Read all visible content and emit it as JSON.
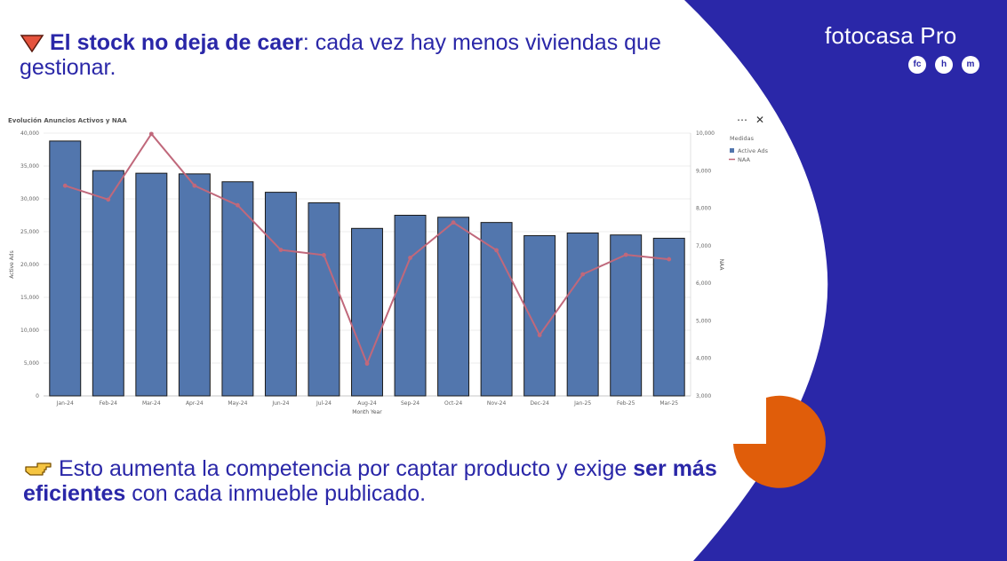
{
  "slide": {
    "headline_bold": "El stock no deja de caer",
    "headline_rest": ": cada vez hay menos viviendas que gestionar.",
    "bottom_pre": "Esto aumenta la competencia por captar producto y exige ",
    "bottom_bold": "ser más eficientes",
    "bottom_post": " con cada inmueble publicado.",
    "brand": "fotocasa Pro",
    "badges": [
      "fc",
      "h",
      "m"
    ],
    "colors": {
      "accent": "#2a27a8",
      "orange": "#e05d0a",
      "bar": "#5276ad",
      "line": "#c0687b"
    },
    "icons": [
      "triangle-down-icon",
      "pointing-hand-icon"
    ]
  },
  "chart_data": {
    "type": "bar",
    "title": "Evolución Anuncios Activos y NAA",
    "xlabel": "Month Year",
    "ylabel": "Active Ads",
    "y2label": "NAA",
    "categories": [
      "Jan-24",
      "Feb-24",
      "Mar-24",
      "Apr-24",
      "May-24",
      "Jun-24",
      "Jul-24",
      "Aug-24",
      "Sep-24",
      "Oct-24",
      "Nov-24",
      "Dec-24",
      "Jan-25",
      "Feb-25",
      "Mar-25"
    ],
    "ylim": [
      0,
      40000
    ],
    "y2lim": [
      3000,
      10000
    ],
    "yticks": [
      "0",
      "5,000",
      "10,000",
      "15,000",
      "20,000",
      "25,000",
      "30,000",
      "35,000",
      "40,000"
    ],
    "y2ticks": [
      "3,000",
      "4,000",
      "5,000",
      "6,000",
      "7,000",
      "8,000",
      "9,000",
      "10,000"
    ],
    "legend_title": "Medidas",
    "legend_position": "right",
    "grid": true,
    "series": [
      {
        "name": "Active Ads",
        "type": "bar",
        "axis": "left",
        "values": [
          38800,
          34300,
          33900,
          33800,
          32600,
          31000,
          29400,
          25500,
          27500,
          27200,
          26400,
          24400,
          24800,
          24500,
          24000
        ]
      },
      {
        "name": "NAA",
        "type": "line",
        "axis": "right",
        "values": [
          8600,
          8230,
          9980,
          8600,
          8080,
          6890,
          6750,
          3860,
          6680,
          7620,
          6880,
          4620,
          6240,
          6760,
          6640
        ]
      }
    ]
  }
}
